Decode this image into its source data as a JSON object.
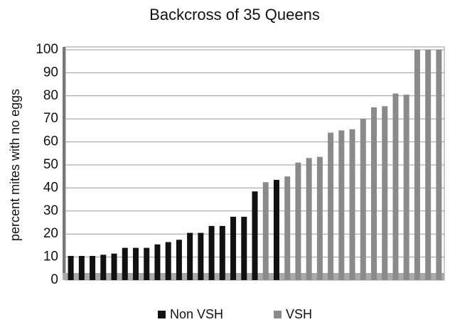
{
  "chart_data": {
    "type": "bar",
    "title": "Backcross of 35 Queens",
    "y_label": "percent mites with no eggs",
    "categories": [
      null,
      null,
      null,
      null,
      null,
      null,
      null,
      null,
      null,
      null,
      null,
      null,
      null,
      null,
      null,
      null,
      null,
      null,
      null,
      null,
      null,
      null,
      null,
      null,
      null,
      null,
      null,
      null,
      null,
      null,
      null,
      null,
      null,
      null,
      null
    ],
    "series": [
      {
        "name": "Non VSH",
        "color": "#111111",
        "values": [
          10.5,
          10.5,
          10.5,
          11,
          11.5,
          14,
          14,
          14,
          15.5,
          16.5,
          17.5,
          20.5,
          20.5,
          23.5,
          23.5,
          27.5,
          27.5,
          38.5,
          null,
          43.5,
          null,
          null,
          null,
          null,
          null,
          null,
          null,
          null,
          null,
          null,
          null,
          null,
          null,
          null,
          null
        ]
      },
      {
        "name": "VSH",
        "color": "#8a8a8a",
        "values": [
          null,
          null,
          null,
          null,
          null,
          null,
          null,
          null,
          null,
          null,
          null,
          null,
          null,
          null,
          null,
          null,
          null,
          null,
          42.5,
          null,
          45,
          51,
          53,
          53.5,
          64,
          65,
          65.5,
          70,
          75,
          75.5,
          81,
          80.5,
          100,
          100,
          100
        ]
      }
    ],
    "ylim": [
      0,
      100
    ],
    "yticks": [
      0,
      10,
      20,
      30,
      40,
      50,
      60,
      70,
      80,
      90,
      100
    ],
    "grid": true,
    "legend": "bottom"
  }
}
